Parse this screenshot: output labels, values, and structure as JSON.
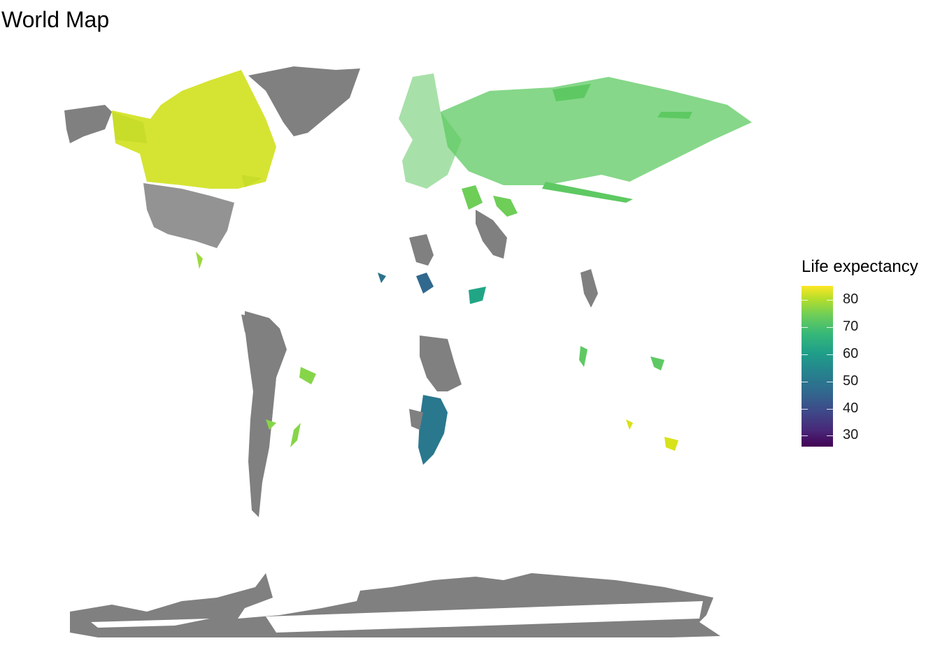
{
  "title": "World Map",
  "legend": {
    "title": "Life expectancy",
    "ticks": [
      "80",
      "70",
      "60",
      "50",
      "40",
      "30"
    ],
    "tick_values": [
      80,
      70,
      60,
      50,
      40,
      30
    ],
    "range": [
      25,
      85
    ],
    "palette": "viridis",
    "colors": [
      "#440154",
      "#31688e",
      "#21918c",
      "#35b779",
      "#fde725"
    ]
  },
  "map": {
    "no_data_color": "#808080",
    "background": "#ffffff"
  }
}
